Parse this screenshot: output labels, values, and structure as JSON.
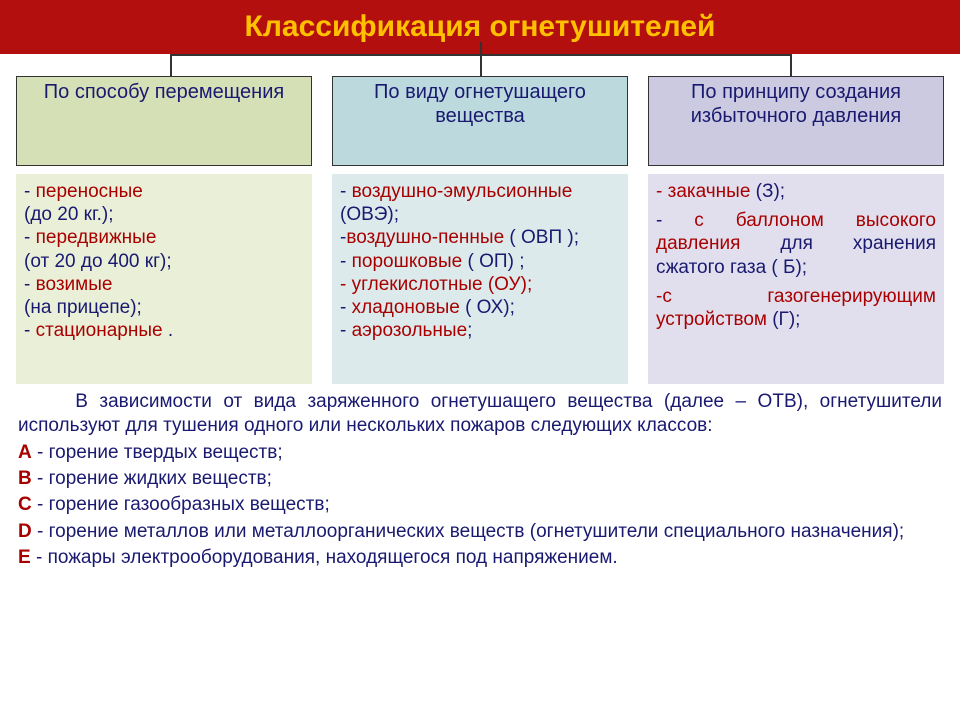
{
  "colors": {
    "title_bg": "#b30f0f",
    "title_text": "#ffc000",
    "header1_bg": "#d6e0b6",
    "header2_bg": "#bcd9de",
    "header3_bg": "#cccae0",
    "header_text": "#191970",
    "content1_bg": "#eaf0d8",
    "content2_bg": "#dceaec",
    "content3_bg": "#e1dfed",
    "red_text": "#a80000",
    "dark_text": "#191970",
    "connector": "#333333"
  },
  "title": "Классификация огнетушителей",
  "title_fontsize": 30,
  "headers": {
    "h1": "По способу перемещения",
    "h2": "По виду огнетушащего вещества",
    "h3": "По  принципу создания избыточного давления"
  },
  "col1": {
    "l1_dash": "- ",
    "l1_term": "переносные",
    "l2": "(до 20 кг.);",
    "l3_dash": "- ",
    "l3_term": "передвижные",
    "l4": "(от 20 до 400 кг);",
    "l5_dash": "- ",
    "l5_term": "возимые",
    "l6": "(на прицепе);",
    "l7_dash": "- ",
    "l7_term": "стационарные",
    "l7_after": " ."
  },
  "col2": {
    "l1_dash": " - ",
    "l1_term": "воздушно-эмульсионные",
    "l1_after": " (ОВЭ);",
    "l2_dash": "-",
    "l2_term": "воздушно-пенные",
    "l2_after": " ( ОВП );",
    "l3_dash": "- ",
    "l3_term": "порошковые",
    "l3_after": " ( ОП) ;",
    "l4_dash": "- ",
    "l4_term": "углекислотные",
    "l4_after": "  (ОУ);",
    "l5_dash": "- ",
    "l5_term": "хладоновые",
    "l5_after": " ( ОХ);",
    "l6_dash": "- ",
    "l6_term": "аэрозольные",
    "l6_after": ";"
  },
  "col3": {
    "l1_dash": "- ",
    "l1_term": "закачные",
    "l1_after": "  (З);",
    "l2_dash": "- ",
    "l2_term": "с баллоном высокого давления",
    "l2_after": " для хранения  сжатого газа ( Б);",
    "l3_dash": "-",
    "l3_term": "с газогенерирующим устройством",
    "l3_after": " (Г);"
  },
  "bottom": {
    "intro_indent": "     ",
    "intro": "В зависимости от вида заряженного огнетушащего вещества (далее – ОТВ), огнетушители используют для тушения одного или нескольких пожаров следующих классов:",
    "classes": [
      {
        "letter": "А",
        "text": " - горение твердых веществ;"
      },
      {
        "letter": "В",
        "text": " - горение жидких веществ;"
      },
      {
        "letter": "С",
        "text": " - горение газообразных веществ;"
      },
      {
        "letter": "D",
        "text": " - горение металлов или металлоорганических веществ (огнетушители специального назначения);"
      },
      {
        "letter": "Е",
        "text": " - пожары электрооборудования, находящегося под напряжением."
      }
    ]
  }
}
